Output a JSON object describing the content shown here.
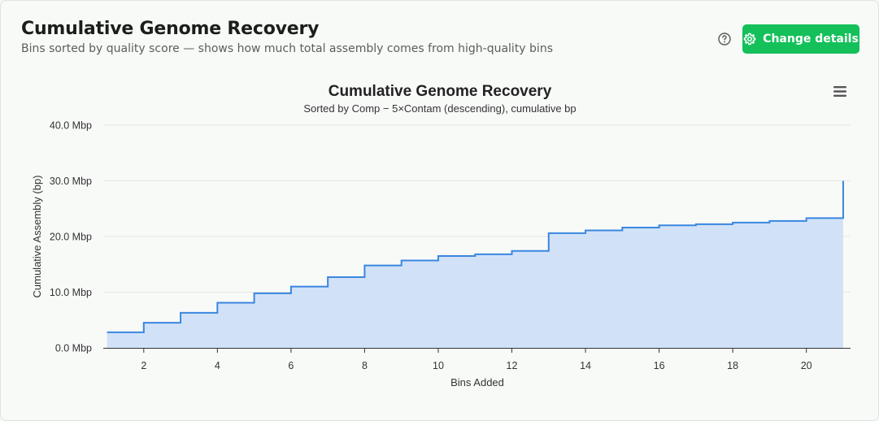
{
  "header": {
    "title": "Cumulative Genome Recovery",
    "subtitle": "Bins sorted by quality score — shows how much total assembly comes from high-quality bins",
    "help_icon": "question-circle-icon",
    "change_button_label": "Change details",
    "change_button_icon": "gear-icon"
  },
  "colors": {
    "accent": "#14c05a",
    "line": "#3a86e0",
    "fill": "#d1e2f8"
  },
  "chart_data": {
    "type": "area",
    "step": true,
    "title": "Cumulative Genome Recovery",
    "subtitle": "Sorted by Comp − 5×Contam (descending), cumulative bp",
    "xlabel": "Bins Added",
    "ylabel": "Cumulative Assembly (bp)",
    "xlim": [
      0.9,
      21.2
    ],
    "ylim": [
      0,
      40
    ],
    "x_ticks": [
      2,
      4,
      6,
      8,
      10,
      12,
      14,
      16,
      18,
      20
    ],
    "y_ticks": [
      0,
      10,
      20,
      30,
      40
    ],
    "y_tick_labels": [
      "0.0 Mbp",
      "10.0 Mbp",
      "20.0 Mbp",
      "30.0 Mbp",
      "40.0 Mbp"
    ],
    "grid": true,
    "legend": "none",
    "menu_icon": "hamburger-menu-icon",
    "series": [
      {
        "x": [
          1,
          2,
          3,
          4,
          5,
          6,
          7,
          8,
          9,
          10,
          11,
          12,
          13,
          14,
          15,
          16,
          17,
          18,
          19,
          20,
          21
        ],
        "values": [
          2.8,
          4.5,
          6.3,
          8.1,
          9.8,
          11.0,
          12.7,
          14.8,
          15.7,
          16.5,
          16.8,
          17.4,
          20.6,
          21.1,
          21.6,
          22.0,
          22.2,
          22.5,
          22.8,
          23.3,
          30.0
        ]
      }
    ]
  }
}
